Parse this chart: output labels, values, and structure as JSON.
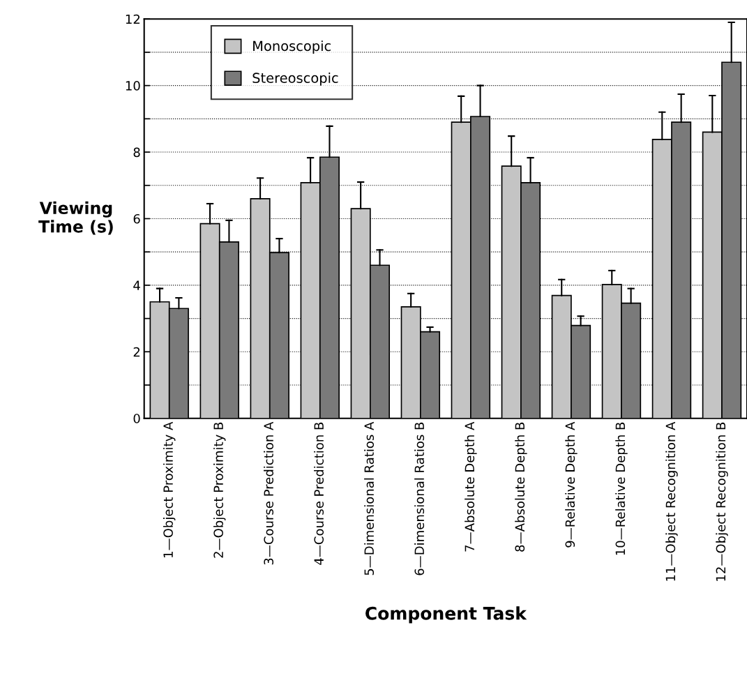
{
  "chart_data": {
    "type": "bar",
    "xlabel": "Component Task",
    "ylabel": "Viewing\nTime (s)",
    "categories": [
      "1—Object Proximity A",
      "2—Object Proximity B",
      "3—Course Prediction A",
      "4—Course Prediction B",
      "5—Dimensional Ratios A",
      "6—Dimensional Ratios B",
      "7—Absolute Depth A",
      "8—Absolute Depth B",
      "9—Relative Depth A",
      "10—Relative Depth B",
      "11—Object Recognition A",
      "12—Object Recognition B"
    ],
    "series": [
      {
        "name": "Monoscopic",
        "color": "#c4c4c4",
        "values": [
          3.5,
          5.85,
          6.6,
          7.08,
          6.3,
          3.35,
          8.9,
          7.58,
          3.69,
          4.02,
          8.38,
          8.6
        ],
        "errors": [
          [
            3.5,
            3.9
          ],
          [
            5.85,
            6.45
          ],
          [
            6.6,
            7.22
          ],
          [
            7.08,
            7.83
          ],
          [
            6.3,
            7.1
          ],
          [
            3.35,
            3.75
          ],
          [
            8.9,
            9.68
          ],
          [
            7.58,
            8.48
          ],
          [
            3.69,
            4.17
          ],
          [
            4.02,
            4.44
          ],
          [
            8.38,
            9.2
          ],
          [
            8.6,
            9.7
          ]
        ]
      },
      {
        "name": "Stereoscopic",
        "color": "#7a7a7a",
        "values": [
          3.3,
          5.3,
          4.98,
          7.85,
          4.6,
          2.6,
          9.07,
          7.08,
          2.79,
          3.46,
          8.9,
          10.7
        ],
        "errors": [
          [
            3.3,
            3.62
          ],
          [
            5.3,
            5.95
          ],
          [
            4.98,
            5.4
          ],
          [
            7.85,
            8.78
          ],
          [
            4.6,
            5.06
          ],
          [
            2.6,
            2.74
          ],
          [
            9.07,
            10.0
          ],
          [
            7.08,
            7.83
          ],
          [
            2.79,
            3.07
          ],
          [
            3.46,
            3.9
          ],
          [
            8.9,
            9.74
          ],
          [
            10.7,
            11.9
          ]
        ]
      }
    ],
    "ylim": [
      0,
      12
    ],
    "yticks": [
      0,
      {
        "value": 1,
        "label": null
      },
      2,
      {
        "value": 3,
        "label": null
      },
      4,
      {
        "value": 5,
        "label": null
      },
      6,
      {
        "value": 7,
        "label": null
      },
      8,
      {
        "value": 9,
        "label": null
      },
      10,
      {
        "value": 11,
        "label": null
      },
      12
    ],
    "grid": "y",
    "legend": "top left"
  }
}
